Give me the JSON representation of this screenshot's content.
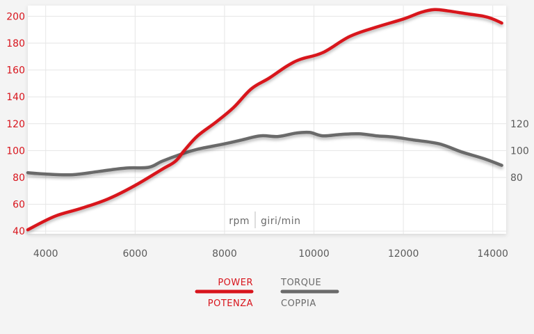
{
  "chart_data": {
    "type": "line",
    "xlabel": "rpm | giri/min",
    "xlabel_left": "rpm",
    "xlabel_right": "giri/min",
    "xlim": [
      3600,
      14300
    ],
    "x_ticks": [
      4000,
      6000,
      8000,
      10000,
      12000,
      14000
    ],
    "y_left": {
      "lim": [
        38,
        208
      ],
      "ticks": [
        40,
        60,
        80,
        100,
        120,
        140,
        160,
        180,
        200
      ]
    },
    "y_right": {
      "lim": [
        38,
        208
      ],
      "ticks": [
        80,
        100,
        120
      ]
    },
    "grid": true,
    "legend_placement": "bottom-center",
    "series": [
      {
        "name": "POWER",
        "name_alt": "POTENZA",
        "axis": "left",
        "color": "#d8141c",
        "x": [
          3600,
          4200,
          4800,
          5400,
          6000,
          6600,
          6900,
          7100,
          7400,
          7800,
          8200,
          8600,
          9000,
          9400,
          9700,
          10200,
          10800,
          11400,
          12000,
          12400,
          12700,
          13000,
          13400,
          13800,
          14000,
          14200
        ],
        "values": [
          41,
          51,
          57,
          64,
          74,
          86,
          92,
          100,
          111,
          121,
          132,
          146,
          154,
          163,
          168,
          173,
          185,
          192,
          198,
          203,
          205,
          204,
          202,
          200,
          198,
          195
        ]
      },
      {
        "name": "TORQUE",
        "name_alt": "COPPIA",
        "axis": "right",
        "color": "#6a6a6a",
        "x": [
          3600,
          4000,
          4600,
          5200,
          5800,
          6300,
          6600,
          7000,
          7400,
          8000,
          8400,
          8800,
          9200,
          9600,
          9900,
          10200,
          10600,
          11000,
          11400,
          11800,
          12200,
          12800,
          13300,
          13800,
          14200
        ],
        "values": [
          83.5,
          82.5,
          82,
          84.5,
          87,
          87.5,
          92,
          97,
          101,
          105,
          108,
          111,
          110.5,
          113,
          113.5,
          111,
          112,
          112.5,
          111,
          110,
          108,
          105,
          99,
          94,
          89
        ]
      }
    ]
  }
}
